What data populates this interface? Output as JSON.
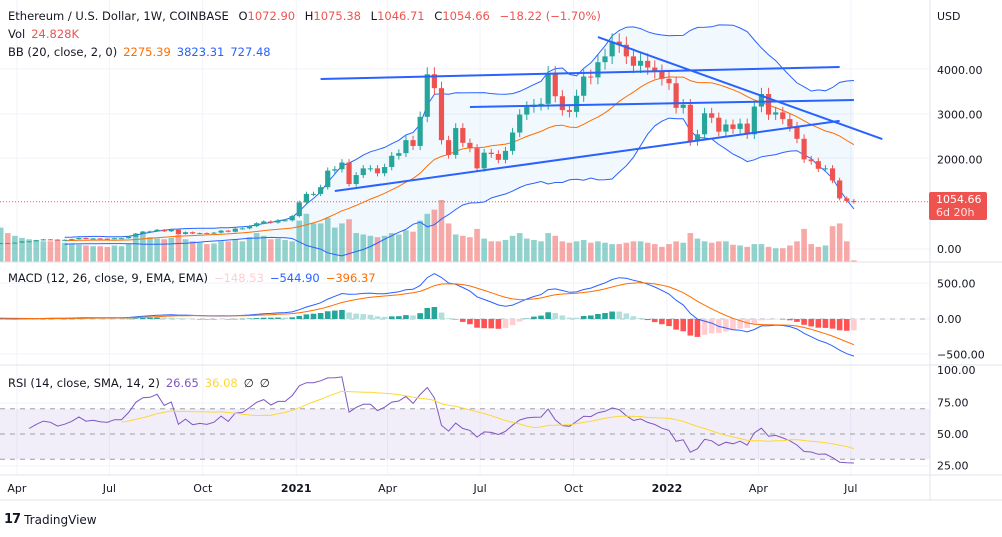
{
  "header": {
    "title": "Ethereum / U.S. Dollar, 1W, COINBASE",
    "o_label": "O",
    "open": "1072.90",
    "h_label": "H",
    "high": "1075.38",
    "l_label": "L",
    "low": "1046.71",
    "c_label": "C",
    "close": "1054.66",
    "change": "−18.22 (−1.70%)",
    "vol_label": "Vol",
    "vol": "24.828K",
    "bb_label": "BB (20, close, 2, 0)",
    "bb_basis": "2275.39",
    "bb_upper": "3823.31",
    "bb_lower": "727.48"
  },
  "macd_legend": {
    "label": "MACD (12, 26, close, 9, EMA, EMA)",
    "hist": "−148.53",
    "macd": "−544.90",
    "signal": "−396.37"
  },
  "rsi_legend": {
    "label": "RSI (14, close, SMA, 14, 2)",
    "rsi": "26.65",
    "sma": "36.08",
    "v1": "∅",
    "v2": "∅"
  },
  "price_box": {
    "price": "1054.66",
    "countdown": "6d 20h"
  },
  "branding": "TradingView",
  "colors": {
    "up": "#26a69a",
    "down": "#ef5350",
    "bb": "#2962ff",
    "basis": "#ff6d00",
    "macd": "#2962ff",
    "signal": "#ff6d00",
    "rsi": "#7e57c2",
    "rsi_sma": "#fdd835",
    "trend": "#2962ff"
  },
  "chart_data": {
    "type": "candlestick",
    "start_week": "2020-01-06",
    "closes": [
      144,
      167,
      162,
      189,
      223,
      265,
      250,
      224,
      200,
      124,
      132,
      131,
      142,
      170,
      172,
      195,
      215,
      210,
      195,
      205,
      220,
      245,
      230,
      235,
      230,
      228,
      240,
      240,
      275,
      345,
      390,
      395,
      430,
      395,
      430,
      335,
      375,
      345,
      355,
      350,
      365,
      410,
      385,
      455,
      460,
      510,
      575,
      615,
      590,
      640,
      640,
      735,
      1040,
      1230,
      1230,
      1380,
      1750,
      1780,
      1930,
      1450,
      1650,
      1800,
      1800,
      1690,
      1830,
      2080,
      2140,
      2430,
      2300,
      2950,
      3900,
      3590,
      2430,
      2100,
      2700,
      2370,
      2250,
      1800,
      2150,
      2120,
      1990,
      2190,
      2600,
      3000,
      3170,
      3220,
      3240,
      3930,
      3410,
      3100,
      3060,
      3420,
      3850,
      3830,
      4170,
      4300,
      4630,
      4560,
      4300,
      4090,
      4200,
      4050,
      3960,
      3800,
      3700,
      3150,
      3220,
      2400,
      2560,
      3030,
      2930,
      2620,
      2780,
      2680,
      2800,
      2560,
      3180,
      3460,
      3000,
      3050,
      2900,
      2730,
      2460,
      2000,
      1960,
      1790,
      1800,
      1530,
      1130,
      1072.9,
      1054.66
    ],
    "volume_k": [
      300,
      320,
      300,
      350,
      400,
      420,
      350,
      380,
      420,
      600,
      500,
      420,
      380,
      350,
      330,
      320,
      300,
      300,
      320,
      280,
      260,
      250,
      240,
      230,
      230,
      220,
      240,
      230,
      260,
      380,
      420,
      360,
      340,
      330,
      350,
      400,
      330,
      300,
      280,
      260,
      270,
      300,
      300,
      330,
      300,
      360,
      420,
      380,
      330,
      340,
      320,
      300,
      600,
      700,
      560,
      560,
      640,
      500,
      560,
      620,
      420,
      400,
      380,
      360,
      380,
      420,
      400,
      460,
      440,
      600,
      700,
      760,
      900,
      560,
      400,
      380,
      360,
      480,
      340,
      300,
      300,
      320,
      380,
      420,
      340,
      320,
      300,
      420,
      380,
      300,
      280,
      300,
      320,
      280,
      300,
      280,
      260,
      260,
      280,
      300,
      300,
      280,
      260,
      220,
      260,
      300,
      280,
      420,
      340,
      300,
      280,
      300,
      300,
      250,
      240,
      220,
      260,
      260,
      220,
      200,
      200,
      240,
      300,
      480,
      260,
      220,
      240,
      520,
      560,
      300,
      24.828
    ],
    "trendlines": [
      {
        "from": [
          "2021-01-25",
          3795
        ],
        "to": [
          "2022-06-20",
          4063
        ]
      },
      {
        "from": [
          "2021-06-21",
          3170
        ],
        "to": [
          "2022-07-04",
          3325
        ]
      },
      {
        "from": [
          "2021-02-08",
          1295
        ],
        "to": [
          "2022-06-20",
          2860
        ]
      },
      {
        "from": [
          "2021-10-25",
          4730
        ],
        "to": [
          "2022-08-01",
          2455
        ]
      }
    ],
    "indicators": {
      "bb": [
        20,
        2
      ],
      "macd": [
        12,
        26,
        9
      ],
      "rsi": [
        14,
        14
      ]
    },
    "price_axis": {
      "unit": "USD",
      "ticks": [
        "4000.00",
        "3000.00",
        "2000.00",
        "0.00"
      ],
      "values": [
        4000,
        3000,
        2000,
        0
      ]
    },
    "macd_axis": {
      "ticks": [
        "500.00",
        "0.00",
        "−500.00"
      ],
      "values": [
        500,
        0,
        -500
      ]
    },
    "rsi_axis": {
      "ticks": [
        "100.00",
        "75.00",
        "50.00",
        "25.00"
      ],
      "values": [
        100,
        75,
        50,
        25
      ],
      "band": [
        30,
        70
      ]
    },
    "x_ticks": [
      {
        "label": "Apr",
        "date": "2020-04-01"
      },
      {
        "label": "Jul",
        "date": "2020-07-01"
      },
      {
        "label": "Oct",
        "date": "2020-10-01"
      },
      {
        "label": "2021",
        "date": "2021-01-01"
      },
      {
        "label": "Apr",
        "date": "2021-04-01"
      },
      {
        "label": "Jul",
        "date": "2021-07-01"
      },
      {
        "label": "Oct",
        "date": "2021-10-01"
      },
      {
        "label": "2022",
        "date": "2022-01-01"
      },
      {
        "label": "Apr",
        "date": "2022-04-01"
      },
      {
        "label": "Jul",
        "date": "2022-07-01"
      }
    ]
  }
}
